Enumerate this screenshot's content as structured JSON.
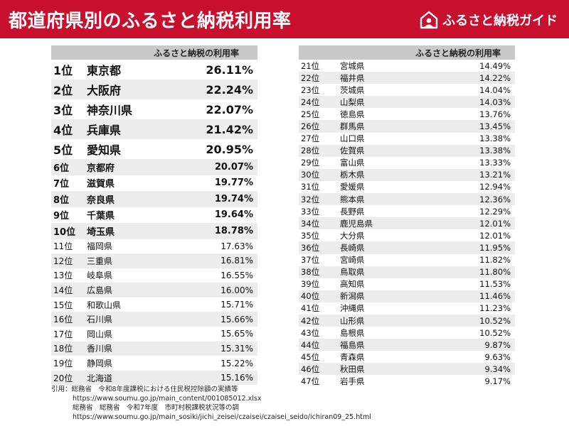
{
  "header": {
    "title": "都道府県別のふるさと納税利用率",
    "brand_name": "ふるさと納税ガイド",
    "colors": {
      "banner": "#c8102e",
      "text": "#ffffff"
    },
    "brand_icon": "house-person-logo"
  },
  "chart_data": {
    "type": "table",
    "column_header": "ふるさと納税の利用率",
    "rows": [
      {
        "rank": "1位",
        "prefecture": "東京都",
        "rate": "26.11%"
      },
      {
        "rank": "2位",
        "prefecture": "大阪府",
        "rate": "22.24%"
      },
      {
        "rank": "3位",
        "prefecture": "神奈川県",
        "rate": "22.07%"
      },
      {
        "rank": "4位",
        "prefecture": "兵庫県",
        "rate": "21.42%"
      },
      {
        "rank": "5位",
        "prefecture": "愛知県",
        "rate": "20.95%"
      },
      {
        "rank": "6位",
        "prefecture": "京都府",
        "rate": "20.07%"
      },
      {
        "rank": "7位",
        "prefecture": "滋賀県",
        "rate": "19.77%"
      },
      {
        "rank": "8位",
        "prefecture": "奈良県",
        "rate": "19.74%"
      },
      {
        "rank": "9位",
        "prefecture": "千葉県",
        "rate": "19.64%"
      },
      {
        "rank": "10位",
        "prefecture": "埼玉県",
        "rate": "18.78%"
      },
      {
        "rank": "11位",
        "prefecture": "福岡県",
        "rate": "17.63%"
      },
      {
        "rank": "12位",
        "prefecture": "三重県",
        "rate": "16.81%"
      },
      {
        "rank": "13位",
        "prefecture": "岐阜県",
        "rate": "16.55%"
      },
      {
        "rank": "14位",
        "prefecture": "広島県",
        "rate": "16.00%"
      },
      {
        "rank": "15位",
        "prefecture": "和歌山県",
        "rate": "15.71%"
      },
      {
        "rank": "16位",
        "prefecture": "石川県",
        "rate": "15.66%"
      },
      {
        "rank": "17位",
        "prefecture": "岡山県",
        "rate": "15.65%"
      },
      {
        "rank": "18位",
        "prefecture": "香川県",
        "rate": "15.31%"
      },
      {
        "rank": "19位",
        "prefecture": "静岡県",
        "rate": "15.22%"
      },
      {
        "rank": "20位",
        "prefecture": "北海道",
        "rate": "15.16%"
      },
      {
        "rank": "21位",
        "prefecture": "宮城県",
        "rate": "14.49%"
      },
      {
        "rank": "22位",
        "prefecture": "福井県",
        "rate": "14.22%"
      },
      {
        "rank": "23位",
        "prefecture": "茨城県",
        "rate": "14.04%"
      },
      {
        "rank": "24位",
        "prefecture": "山梨県",
        "rate": "14.03%"
      },
      {
        "rank": "25位",
        "prefecture": "徳島県",
        "rate": "13.76%"
      },
      {
        "rank": "26位",
        "prefecture": "群馬県",
        "rate": "13.45%"
      },
      {
        "rank": "27位",
        "prefecture": "山口県",
        "rate": "13.38%"
      },
      {
        "rank": "28位",
        "prefecture": "佐賀県",
        "rate": "13.38%"
      },
      {
        "rank": "29位",
        "prefecture": "富山県",
        "rate": "13.33%"
      },
      {
        "rank": "30位",
        "prefecture": "栃木県",
        "rate": "13.21%"
      },
      {
        "rank": "31位",
        "prefecture": "愛媛県",
        "rate": "12.94%"
      },
      {
        "rank": "32位",
        "prefecture": "熊本県",
        "rate": "12.36%"
      },
      {
        "rank": "33位",
        "prefecture": "長野県",
        "rate": "12.29%"
      },
      {
        "rank": "34位",
        "prefecture": "鹿児島県",
        "rate": "12.01%"
      },
      {
        "rank": "35位",
        "prefecture": "大分県",
        "rate": "12.01%"
      },
      {
        "rank": "36位",
        "prefecture": "長崎県",
        "rate": "11.95%"
      },
      {
        "rank": "37位",
        "prefecture": "宮崎県",
        "rate": "11.82%"
      },
      {
        "rank": "38位",
        "prefecture": "鳥取県",
        "rate": "11.80%"
      },
      {
        "rank": "39位",
        "prefecture": "高知県",
        "rate": "11.53%"
      },
      {
        "rank": "40位",
        "prefecture": "新潟県",
        "rate": "11.46%"
      },
      {
        "rank": "41位",
        "prefecture": "沖縄県",
        "rate": "11.23%"
      },
      {
        "rank": "42位",
        "prefecture": "山形県",
        "rate": "10.52%"
      },
      {
        "rank": "43位",
        "prefecture": "島根県",
        "rate": "10.52%"
      },
      {
        "rank": "44位",
        "prefecture": "福島県",
        "rate": "9.87%"
      },
      {
        "rank": "45位",
        "prefecture": "青森県",
        "rate": "9.63%"
      },
      {
        "rank": "46位",
        "prefecture": "秋田県",
        "rate": "9.34%"
      },
      {
        "rank": "47位",
        "prefecture": "岩手県",
        "rate": "9.17%"
      }
    ]
  },
  "citation": {
    "line1": "引用：総務省　令和8年度課税における住民税控除額の実績等",
    "line2": "https://www.soumu.go.jp/main_content/001085012.xlsx",
    "line3": "総務省　総務省　令和7年度　市町村税課税状況等の調",
    "line4": "https://www.soumu.go.jp/main_sosiki/jichi_zeisei/czaisei/czaisei_seido/ichiran09_25.html"
  }
}
